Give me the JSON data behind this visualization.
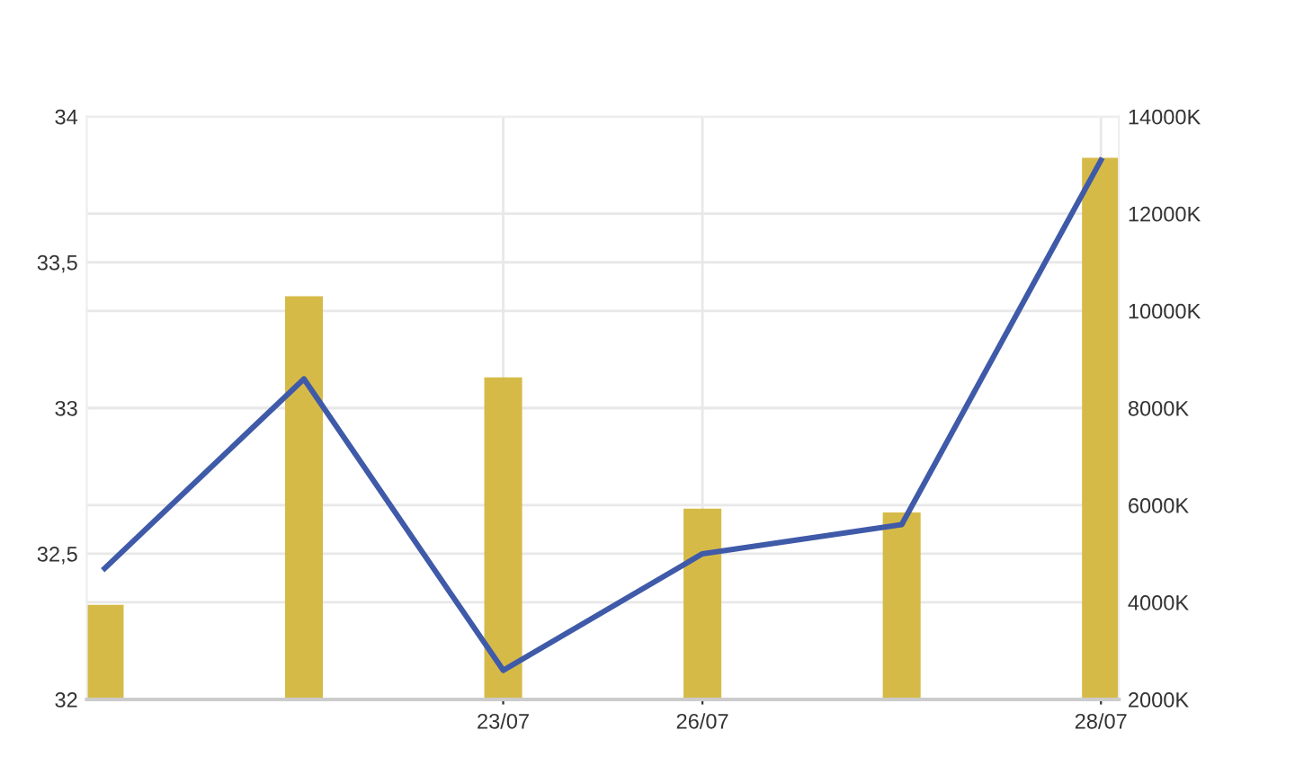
{
  "chart_data": {
    "type": "bar",
    "categories": [
      null,
      null,
      "23/07",
      "26/07",
      null,
      "28/07"
    ],
    "series": [
      {
        "axis": "y2",
        "color": "#d6ba48",
        "values": [
          3950000,
          10300000,
          8630000,
          5930000,
          5850000,
          13150000
        ]
      },
      {
        "type": "line",
        "axis": "y",
        "color": "#3f5aa8",
        "values": [
          32.45,
          33.1,
          32.1,
          32.5,
          32.6,
          33.85
        ]
      }
    ],
    "ylim": [
      32,
      34
    ],
    "yticks": [
      32,
      {
        "value": 32.5,
        "label": "32,5"
      },
      33,
      {
        "value": 33.5,
        "label": "33,5"
      },
      34
    ],
    "y2lim": [
      2000000,
      14000000
    ],
    "y2ticks": [
      {
        "value": 2000000,
        "label": "2000K"
      },
      {
        "value": 4000000,
        "label": "4000K"
      },
      {
        "value": 6000000,
        "label": "6000K"
      },
      {
        "value": 8000000,
        "label": "8000K"
      },
      {
        "value": 10000000,
        "label": "10000K"
      },
      {
        "value": 12000000,
        "label": "12000K"
      },
      {
        "value": 14000000,
        "label": "14000K"
      }
    ],
    "grid": true,
    "marker": "none",
    "line_style": "solid",
    "legend": false
  }
}
